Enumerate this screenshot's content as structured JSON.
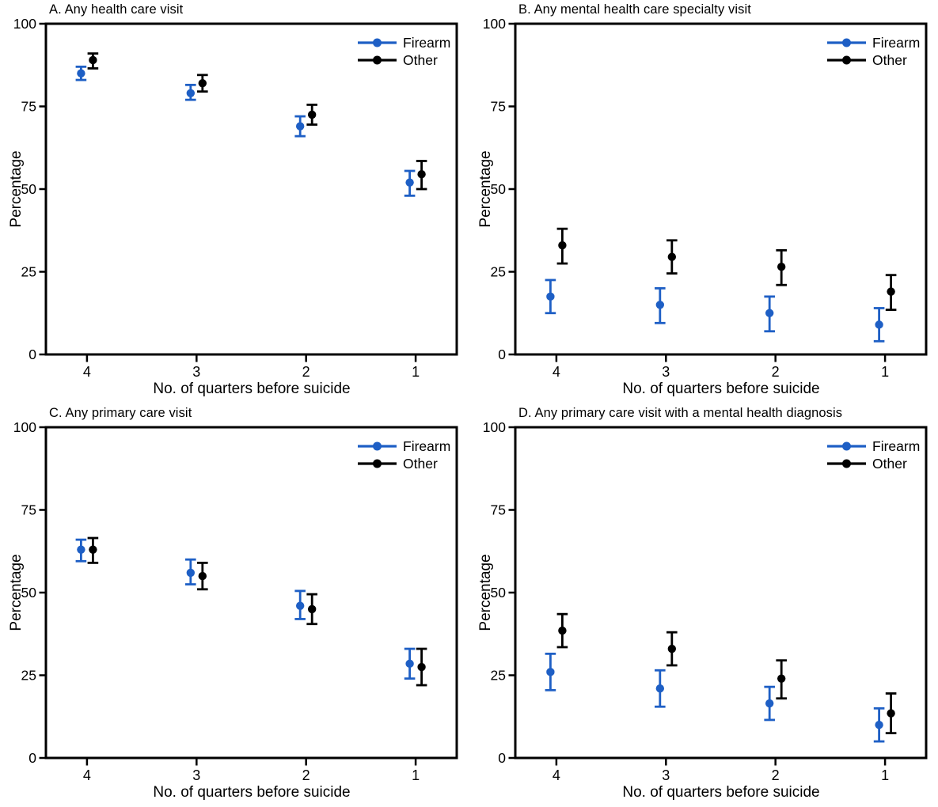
{
  "figure": {
    "axis_color": "#000000",
    "background": "#ffffff",
    "legend": {
      "entries": [
        {
          "label": "Firearm",
          "color": "#1e5fc5"
        },
        {
          "label": "Other",
          "color": "#000000"
        }
      ],
      "position": "top-right-inside"
    }
  },
  "chart_data": [
    {
      "type": "scatter",
      "panel": "A",
      "title": "A. Any health care visit",
      "xlabel": "No. of quarters before suicide",
      "ylabel": "Percentage",
      "ylim": [
        0,
        100
      ],
      "yticks": [
        0,
        25,
        50,
        75,
        100
      ],
      "categories": [
        "4",
        "3",
        "2",
        "1"
      ],
      "grid": false,
      "series": [
        {
          "name": "Firearm",
          "color": "#1e5fc5",
          "values": [
            85,
            79,
            69,
            52
          ],
          "ci_low": [
            83,
            77,
            66,
            48
          ],
          "ci_high": [
            87,
            81.5,
            72,
            55.5
          ]
        },
        {
          "name": "Other",
          "color": "#000000",
          "values": [
            89,
            82,
            72.5,
            54.5
          ],
          "ci_low": [
            86.5,
            79.5,
            69.5,
            50
          ],
          "ci_high": [
            91,
            84.5,
            75.5,
            58.5
          ]
        }
      ]
    },
    {
      "type": "scatter",
      "panel": "B",
      "title": "B. Any mental health care specialty visit",
      "xlabel": "No. of quarters before suicide",
      "ylabel": "Percentage",
      "ylim": [
        0,
        100
      ],
      "yticks": [
        0,
        25,
        50,
        75,
        100
      ],
      "categories": [
        "4",
        "3",
        "2",
        "1"
      ],
      "grid": false,
      "series": [
        {
          "name": "Firearm",
          "color": "#1e5fc5",
          "values": [
            17.5,
            15,
            12.5,
            9
          ],
          "ci_low": [
            12.5,
            9.5,
            7,
            4
          ],
          "ci_high": [
            22.5,
            20,
            17.5,
            14
          ]
        },
        {
          "name": "Other",
          "color": "#000000",
          "values": [
            33,
            29.5,
            26.5,
            19
          ],
          "ci_low": [
            27.5,
            24.5,
            21,
            13.5
          ],
          "ci_high": [
            38,
            34.5,
            31.5,
            24
          ]
        }
      ]
    },
    {
      "type": "scatter",
      "panel": "C",
      "title": "C. Any primary care visit",
      "xlabel": "No. of quarters before suicide",
      "ylabel": "Percentage",
      "ylim": [
        0,
        100
      ],
      "yticks": [
        0,
        25,
        50,
        75,
        100
      ],
      "categories": [
        "4",
        "3",
        "2",
        "1"
      ],
      "grid": false,
      "series": [
        {
          "name": "Firearm",
          "color": "#1e5fc5",
          "values": [
            63,
            56,
            46,
            28.5
          ],
          "ci_low": [
            59.5,
            52.5,
            42,
            24
          ],
          "ci_high": [
            66,
            60,
            50.5,
            33
          ]
        },
        {
          "name": "Other",
          "color": "#000000",
          "values": [
            63,
            55,
            45,
            27.5
          ],
          "ci_low": [
            59,
            51,
            40.5,
            22
          ],
          "ci_high": [
            66.5,
            59,
            49.5,
            33
          ]
        }
      ]
    },
    {
      "type": "scatter",
      "panel": "D",
      "title": "D. Any primary care visit with a mental health diagnosis",
      "xlabel": "No. of quarters before suicide",
      "ylabel": "Percentage",
      "ylim": [
        0,
        100
      ],
      "yticks": [
        0,
        25,
        50,
        75,
        100
      ],
      "categories": [
        "4",
        "3",
        "2",
        "1"
      ],
      "grid": false,
      "series": [
        {
          "name": "Firearm",
          "color": "#1e5fc5",
          "values": [
            26,
            21,
            16.5,
            10
          ],
          "ci_low": [
            20.5,
            15.5,
            11.5,
            5
          ],
          "ci_high": [
            31.5,
            26.5,
            21.5,
            15
          ]
        },
        {
          "name": "Other",
          "color": "#000000",
          "values": [
            38.5,
            33,
            24,
            13.5
          ],
          "ci_low": [
            33.5,
            28,
            18,
            7.5
          ],
          "ci_high": [
            43.5,
            38,
            29.5,
            19.5
          ]
        }
      ]
    }
  ]
}
